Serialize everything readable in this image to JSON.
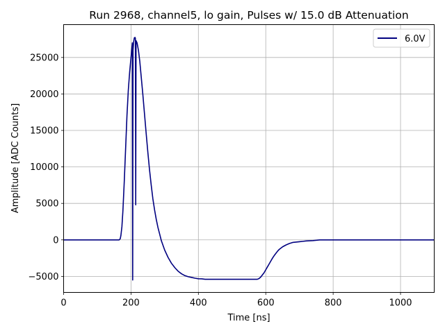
{
  "chart_data": {
    "type": "line",
    "title": "Run 2968, channel5, lo gain, Pulses w/ 15.0 dB Attenuation",
    "xlabel": "Time [ns]",
    "ylabel": "Amplitude [ADC Counts]",
    "xlim": [
      0,
      1100
    ],
    "ylim": [
      -7200,
      29500
    ],
    "xticks": [
      0,
      200,
      400,
      600,
      800,
      1000
    ],
    "xtick_labels": [
      "0",
      "200",
      "400",
      "600",
      "800",
      "1000"
    ],
    "yticks": [
      -5000,
      0,
      5000,
      10000,
      15000,
      20000,
      25000
    ],
    "ytick_labels": [
      "−5000",
      "0",
      "5000",
      "10000",
      "15000",
      "20000",
      "25000"
    ],
    "grid": true,
    "legend_position": "upper right",
    "series": [
      {
        "name": "6.0V",
        "color": "#000080",
        "points": [
          [
            0,
            0
          ],
          [
            165,
            0
          ],
          [
            168,
            150
          ],
          [
            170,
            600
          ],
          [
            173,
            1800
          ],
          [
            176,
            4000
          ],
          [
            180,
            8000
          ],
          [
            184,
            12500
          ],
          [
            188,
            17000
          ],
          [
            192,
            20500
          ],
          [
            196,
            23000
          ],
          [
            200,
            25000
          ],
          [
            203,
            26500
          ],
          [
            204,
            27000
          ],
          [
            205,
            -5500
          ],
          [
            206,
            26000
          ],
          [
            208,
            27200
          ],
          [
            210,
            27700
          ],
          [
            212,
            27750
          ],
          [
            213,
            27600
          ],
          [
            214,
            4800
          ],
          [
            215,
            27300
          ],
          [
            218,
            27000
          ],
          [
            222,
            26000
          ],
          [
            226,
            24500
          ],
          [
            230,
            22500
          ],
          [
            235,
            20000
          ],
          [
            240,
            17300
          ],
          [
            245,
            14600
          ],
          [
            250,
            12000
          ],
          [
            255,
            9600
          ],
          [
            260,
            7500
          ],
          [
            265,
            5600
          ],
          [
            270,
            4100
          ],
          [
            275,
            2800
          ],
          [
            280,
            1700
          ],
          [
            285,
            800
          ],
          [
            290,
            -100
          ],
          [
            300,
            -1400
          ],
          [
            310,
            -2400
          ],
          [
            320,
            -3200
          ],
          [
            330,
            -3800
          ],
          [
            340,
            -4300
          ],
          [
            350,
            -4650
          ],
          [
            360,
            -4900
          ],
          [
            370,
            -5050
          ],
          [
            380,
            -5150
          ],
          [
            390,
            -5250
          ],
          [
            400,
            -5330
          ],
          [
            410,
            -5340
          ],
          [
            420,
            -5400
          ],
          [
            450,
            -5400
          ],
          [
            500,
            -5400
          ],
          [
            550,
            -5400
          ],
          [
            575,
            -5400
          ],
          [
            580,
            -5300
          ],
          [
            585,
            -5100
          ],
          [
            590,
            -4800
          ],
          [
            595,
            -4500
          ],
          [
            600,
            -4100
          ],
          [
            605,
            -3700
          ],
          [
            610,
            -3300
          ],
          [
            615,
            -2900
          ],
          [
            620,
            -2500
          ],
          [
            625,
            -2150
          ],
          [
            630,
            -1850
          ],
          [
            635,
            -1550
          ],
          [
            640,
            -1300
          ],
          [
            650,
            -950
          ],
          [
            660,
            -700
          ],
          [
            670,
            -500
          ],
          [
            680,
            -350
          ],
          [
            690,
            -300
          ],
          [
            700,
            -250
          ],
          [
            710,
            -200
          ],
          [
            720,
            -150
          ],
          [
            740,
            -100
          ],
          [
            750,
            -50
          ],
          [
            760,
            0
          ],
          [
            1100,
            0
          ]
        ]
      }
    ]
  }
}
